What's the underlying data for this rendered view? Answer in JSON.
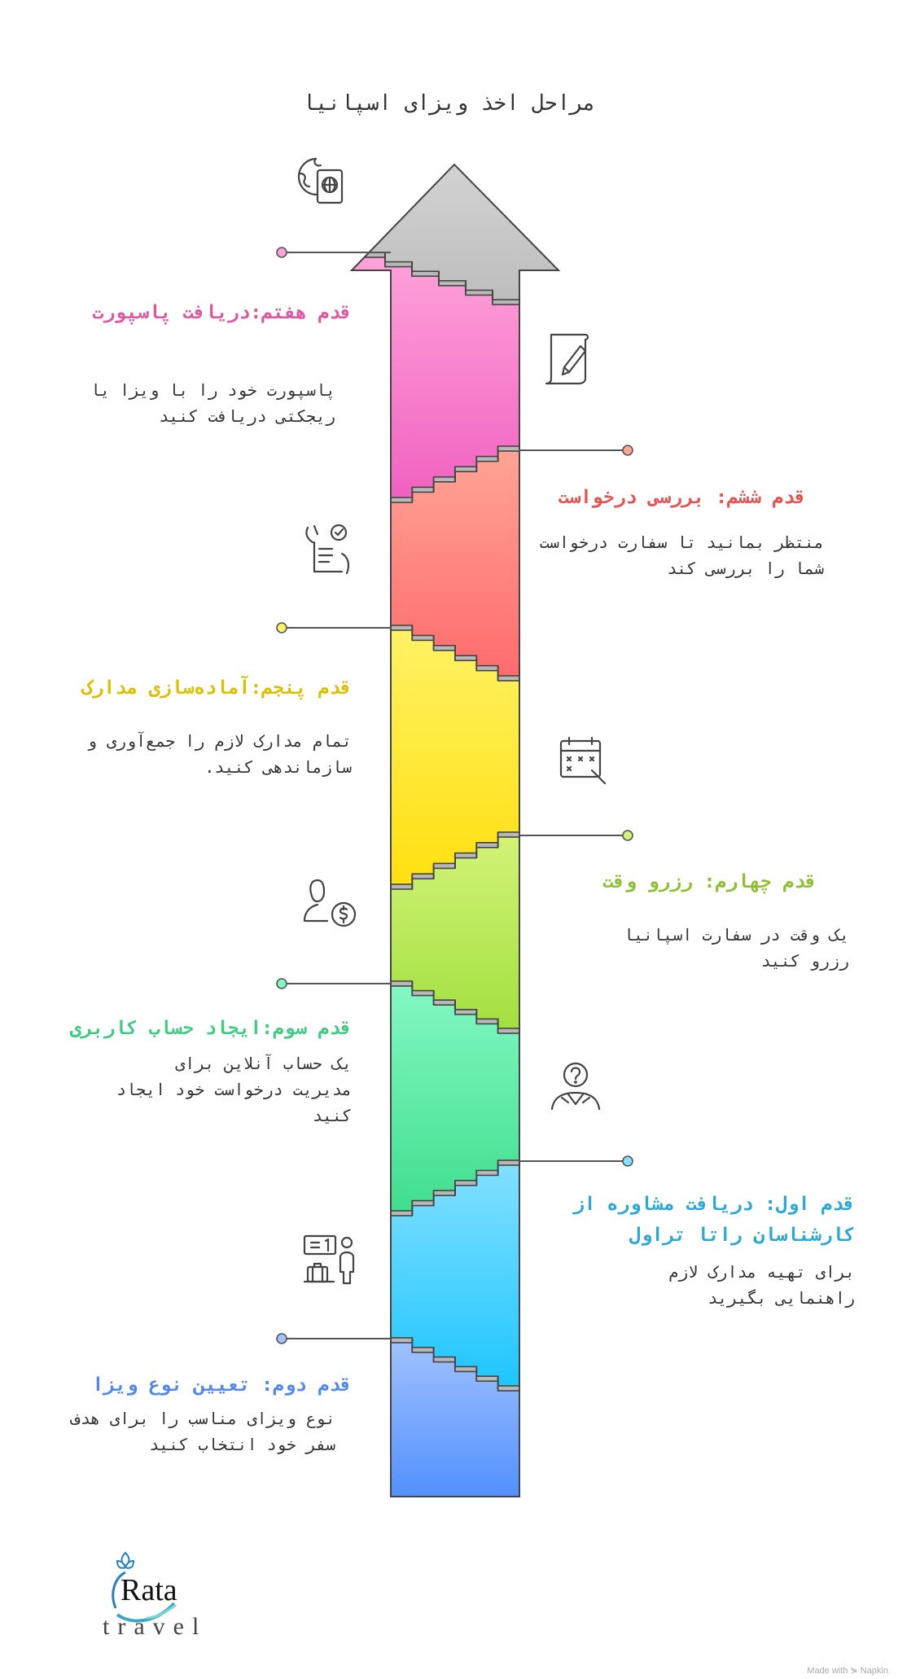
{
  "title": "مراحل اخذ ویزای اسپانیا",
  "arrow_tip_color": "#c4c4c4",
  "steps": [
    {
      "id": "step7",
      "heading": "قدم هفتم:دریافت پاسپورت",
      "description": "پاسپورت خود را با ویزا یا ریجکتی دریافت کنید",
      "color": "#e0559f",
      "fill": [
        "#ffa3da",
        "#f062c0"
      ],
      "icon": "globe-passport-icon",
      "side": "left"
    },
    {
      "id": "step6",
      "heading": "قدم ششم: بررسی درخواست",
      "description": "منتظر بمانید تا سفارت درخواست شما را بررسی کند",
      "color": "#e8504f",
      "fill": [
        "#ffa596",
        "#ff6c6c"
      ],
      "icon": "document-pen-icon",
      "side": "right"
    },
    {
      "id": "step5",
      "heading": "قدم پنجم:آماده‌سازی مدارک",
      "description": "تمام مدارک لازم را جمع‌آوری و سازماندهی کنید.",
      "color": "#dcc000",
      "fill": [
        "#fff266",
        "#ffe010"
      ],
      "icon": "checklist-icon",
      "side": "left"
    },
    {
      "id": "step4",
      "heading": "قدم چهارم: رزرو وقت",
      "description": "یک وقت در سفارت اسپانیا رزرو کنید",
      "color": "#8cc030",
      "fill": [
        "#d4f378",
        "#a2e040"
      ],
      "icon": "calendar-icon",
      "side": "right"
    },
    {
      "id": "step3",
      "heading": "قدم سوم:ایجاد حساب کاربری",
      "description": "یک حساب آنلاین برای مدیریت درخواست خود ایجاد کنید",
      "color": "#3dcc80",
      "fill": [
        "#84f8c4",
        "#40de8e"
      ],
      "icon": "person-dollar-icon",
      "side": "left"
    },
    {
      "id": "step1",
      "heading": "قدم اول: دریافت مشاوره از کارشناسان راتا تراول",
      "description": "برای تهیه مدارک لازم راهنمایی بگیرید",
      "color": "#2aa8d8",
      "fill": [
        "#84e0ff",
        "#1ec6ff"
      ],
      "icon": "person-question-icon",
      "side": "right"
    },
    {
      "id": "step2",
      "heading": "قدم دوم: تعیین نوع ویزا",
      "description": "نوع ویزای مناسب را برای هدف سفر خود انتخاب کنید",
      "color": "#5088f0",
      "fill": [
        "#a2c2ff",
        "#4e8eff"
      ],
      "icon": "traveler-luggage-icon",
      "side": "left"
    }
  ],
  "logo": {
    "name": "Rata",
    "sub": "travel"
  },
  "footer": "Made with ⋟ Napkin"
}
